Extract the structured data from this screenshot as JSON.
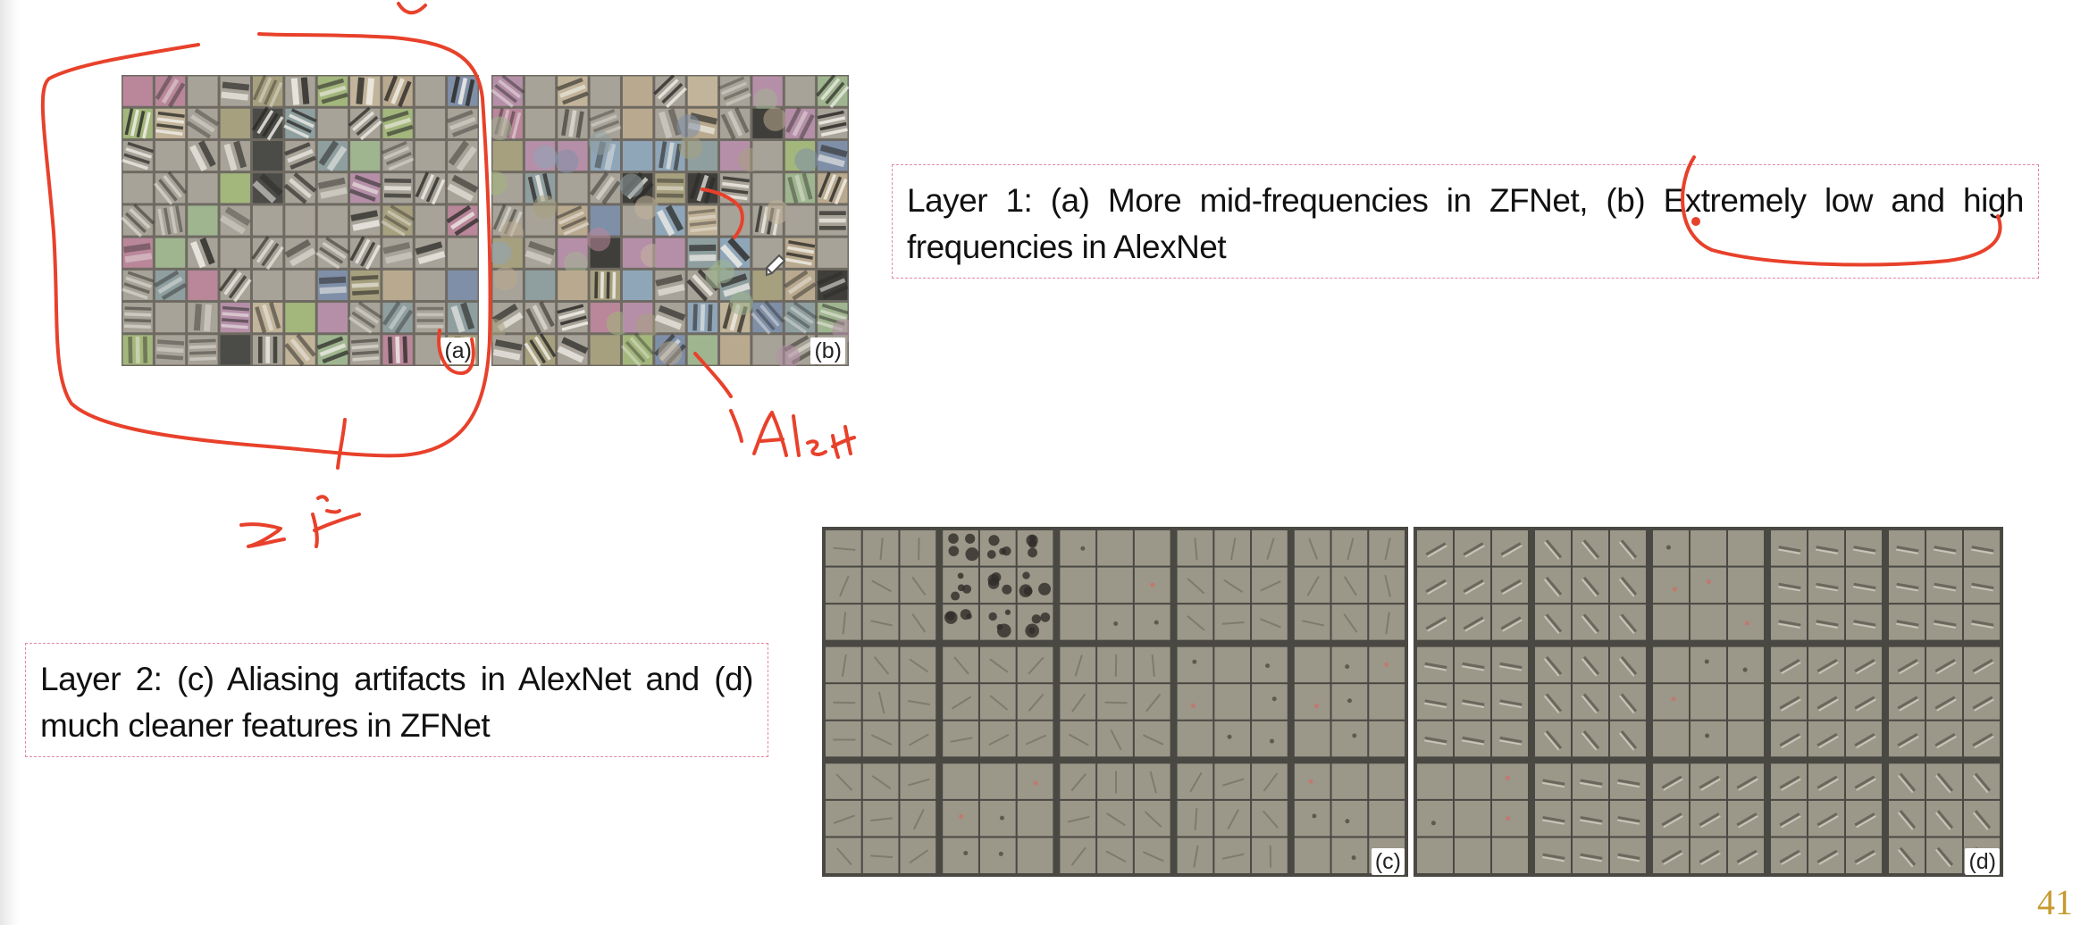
{
  "panels": {
    "a": {
      "label": "(a)"
    },
    "b": {
      "label": "(b)"
    },
    "c": {
      "label": "(c)"
    },
    "d": {
      "label": "(d)"
    }
  },
  "captions": {
    "layer1": "Layer 1: (a) More mid-frequencies in ZFNet, (b) Extremely low and high frequencies in AlexNet",
    "layer2": "Layer 2: (c) Aliasing artifacts in AlexNet and (d) much cleaner features in ZFNet"
  },
  "slide_number": "41",
  "annotation": {
    "ink_color": "#e8412b"
  },
  "colors": {
    "caption_border": "#e58aa0",
    "slide_number": "#c79a2e"
  }
}
